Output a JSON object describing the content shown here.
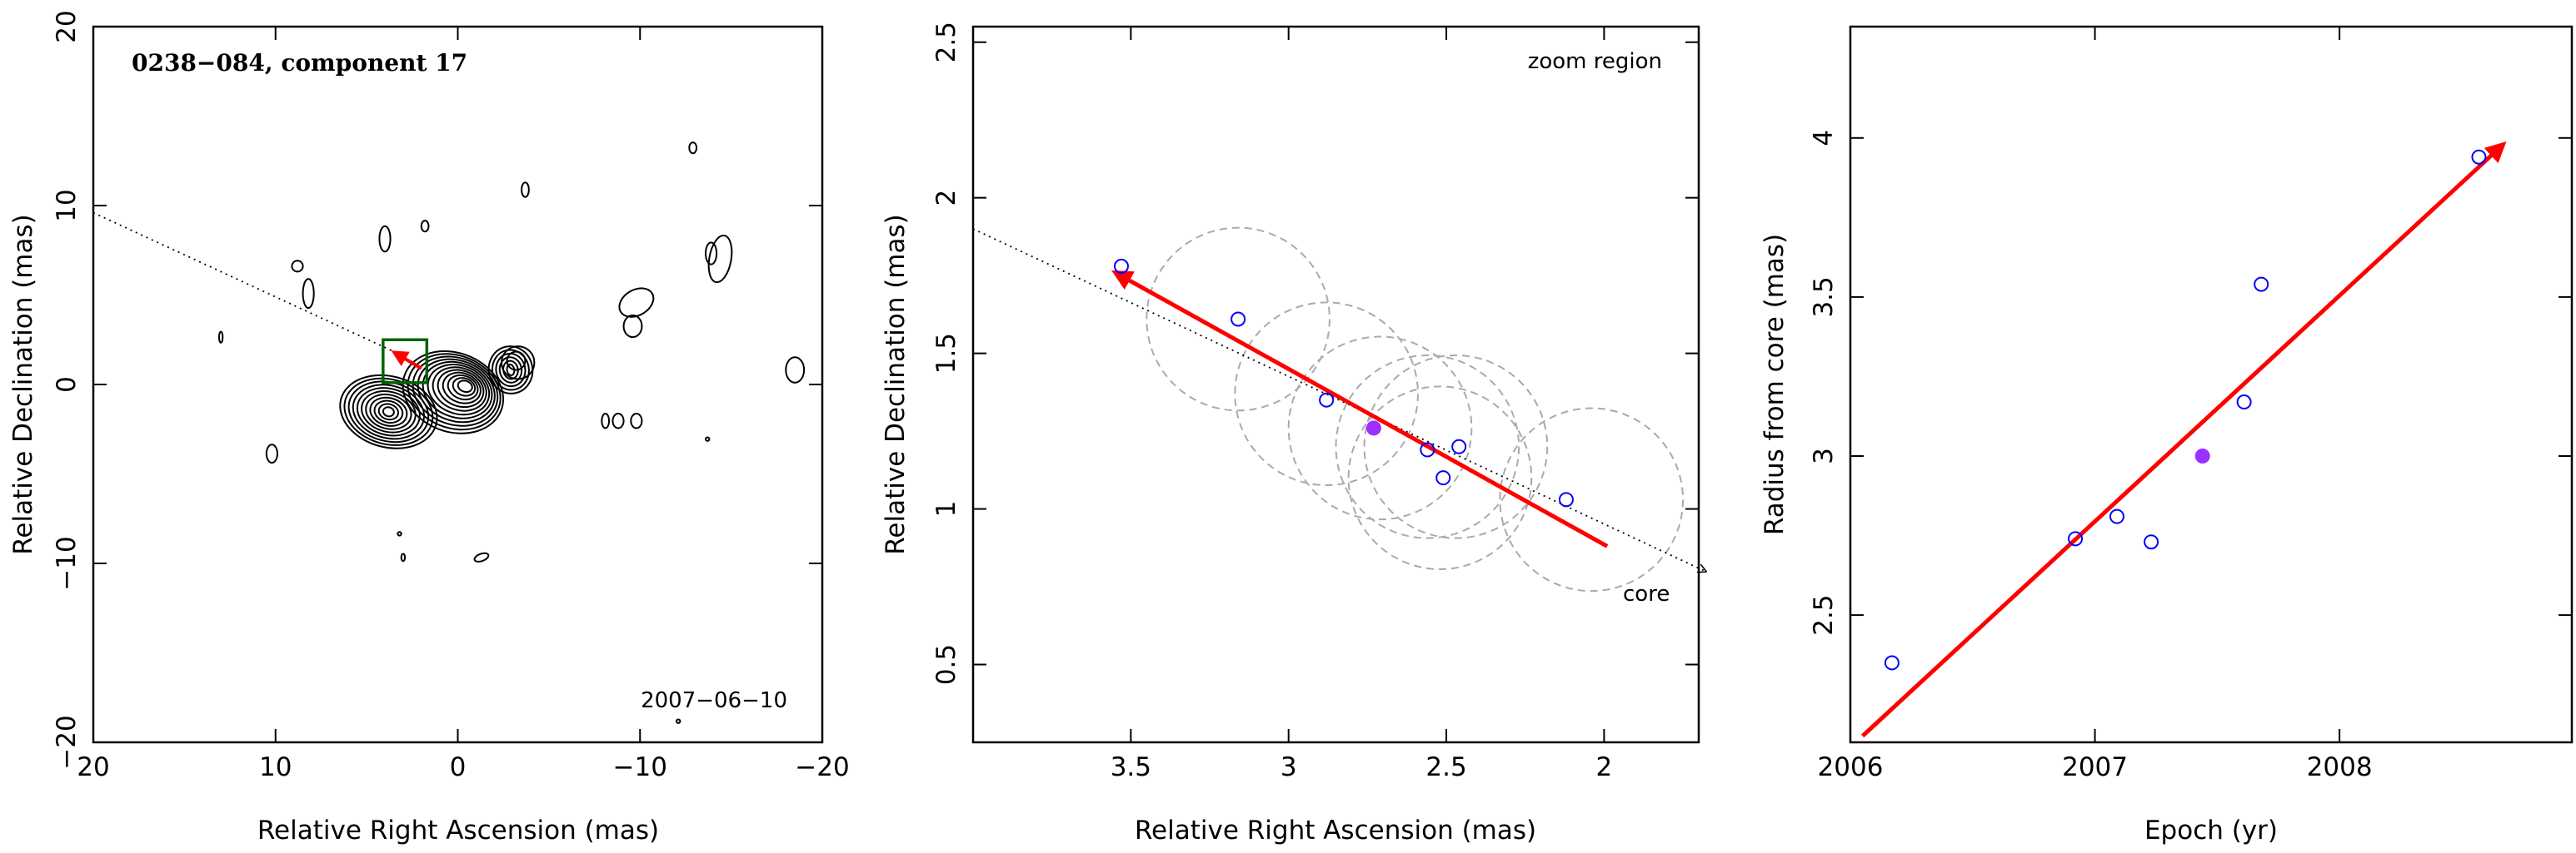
{
  "chart_data": [
    {
      "type": "contour",
      "title": "0238−084, component 17",
      "date": "2007−06−10",
      "xlabel": "Relative Right Ascension (mas)",
      "ylabel": "Relative Declination (mas)",
      "xlim": [
        20,
        -20
      ],
      "ylim": [
        -20,
        20
      ],
      "xticks": [
        {
          "v": 20,
          "label": "20"
        },
        {
          "v": 10,
          "label": "10"
        },
        {
          "v": 0,
          "label": "0"
        },
        {
          "v": -10,
          "label": "−10"
        },
        {
          "v": -20,
          "label": "−20"
        }
      ],
      "yticks": [
        {
          "v": 20,
          "label": "20"
        },
        {
          "v": 10,
          "label": "10"
        },
        {
          "v": 0,
          "label": "0"
        },
        {
          "v": -10,
          "label": "−10"
        },
        {
          "v": -20,
          "label": "−20"
        }
      ],
      "trajectory_line": [
        [
          20,
          9.6
        ],
        [
          3.0,
          1.6
        ]
      ],
      "zoom_box": {
        "x": [
          4.1,
          1.7
        ],
        "y": [
          2.5,
          0.1
        ]
      },
      "motion_arrow": {
        "from": [
          2.0,
          0.9
        ],
        "to": [
          3.5,
          1.8
        ]
      },
      "colors": {
        "contour": "#000000",
        "arrow": "#ff0000",
        "zoom_box": "#006400",
        "trajectory": "#000000"
      }
    },
    {
      "type": "scatter",
      "label": "zoom region",
      "core_label": "core",
      "xlabel": "Relative Right Ascension (mas)",
      "ylabel": "Relative Declination (mas)",
      "xlim": [
        4.0,
        1.7
      ],
      "ylim": [
        0.25,
        2.55
      ],
      "xticks": [
        {
          "v": 3.5,
          "label": "3.5"
        },
        {
          "v": 3,
          "label": "3"
        },
        {
          "v": 2.5,
          "label": "2.5"
        },
        {
          "v": 2,
          "label": "2"
        }
      ],
      "yticks": [
        {
          "v": 0.5,
          "label": "0.5"
        },
        {
          "v": 1,
          "label": "1"
        },
        {
          "v": 1.5,
          "label": "1.5"
        },
        {
          "v": 2,
          "label": "2"
        },
        {
          "v": 2.5,
          "label": "2.5"
        }
      ],
      "points": [
        {
          "x": 3.53,
          "y": 1.78,
          "filled": false
        },
        {
          "x": 3.16,
          "y": 1.61,
          "filled": false
        },
        {
          "x": 2.88,
          "y": 1.35,
          "filled": false
        },
        {
          "x": 2.73,
          "y": 1.26,
          "filled": true
        },
        {
          "x": 2.56,
          "y": 1.19,
          "filled": false
        },
        {
          "x": 2.51,
          "y": 1.1,
          "filled": false
        },
        {
          "x": 2.46,
          "y": 1.2,
          "filled": false
        },
        {
          "x": 2.12,
          "y": 1.03,
          "filled": false
        }
      ],
      "beam_circles": [
        {
          "x": 3.16,
          "y": 1.61,
          "r": 0.29
        },
        {
          "x": 2.88,
          "y": 1.37,
          "r": 0.29
        },
        {
          "x": 2.71,
          "y": 1.26,
          "r": 0.29
        },
        {
          "x": 2.56,
          "y": 1.2,
          "r": 0.29
        },
        {
          "x": 2.47,
          "y": 1.2,
          "r": 0.29
        },
        {
          "x": 2.52,
          "y": 1.1,
          "r": 0.29
        },
        {
          "x": 2.04,
          "y": 1.03,
          "r": 0.29
        }
      ],
      "trajectory_line": [
        [
          4.0,
          1.9
        ],
        [
          1.68,
          0.8
        ]
      ],
      "motion_arrow": {
        "from": [
          1.99,
          0.88
        ],
        "to": [
          3.55,
          1.76
        ]
      },
      "colors": {
        "points": "#0000ff",
        "filled_point": "#9b30ff",
        "arrow": "#ff0000",
        "circles": "#aaaaaa"
      }
    },
    {
      "type": "scatter",
      "xlabel": "Epoch (yr)",
      "ylabel": "Radius from core (mas)",
      "xlim": [
        2006.0,
        2008.95
      ],
      "ylim": [
        2.1,
        4.35
      ],
      "xticks": [
        {
          "v": 2006,
          "label": "2006"
        },
        {
          "v": 2007,
          "label": "2007"
        },
        {
          "v": 2008,
          "label": "2008"
        }
      ],
      "yticks": [
        {
          "v": 2.5,
          "label": "2.5"
        },
        {
          "v": 3,
          "label": "3"
        },
        {
          "v": 3.5,
          "label": "3.5"
        },
        {
          "v": 4,
          "label": "4"
        }
      ],
      "points": [
        {
          "x": 2006.17,
          "y": 2.35,
          "filled": false
        },
        {
          "x": 2006.92,
          "y": 2.74,
          "filled": false
        },
        {
          "x": 2007.09,
          "y": 2.81,
          "filled": false
        },
        {
          "x": 2007.23,
          "y": 2.73,
          "filled": false
        },
        {
          "x": 2007.44,
          "y": 3.0,
          "filled": true
        },
        {
          "x": 2007.61,
          "y": 3.17,
          "filled": false
        },
        {
          "x": 2007.68,
          "y": 3.54,
          "filled": false
        },
        {
          "x": 2008.57,
          "y": 3.94,
          "filled": false
        }
      ],
      "fit_arrow": {
        "from": [
          2006.05,
          2.12
        ],
        "to": [
          2008.67,
          3.98
        ]
      },
      "colors": {
        "points": "#0000ff",
        "filled_point": "#9b30ff",
        "arrow": "#ff0000"
      }
    }
  ]
}
